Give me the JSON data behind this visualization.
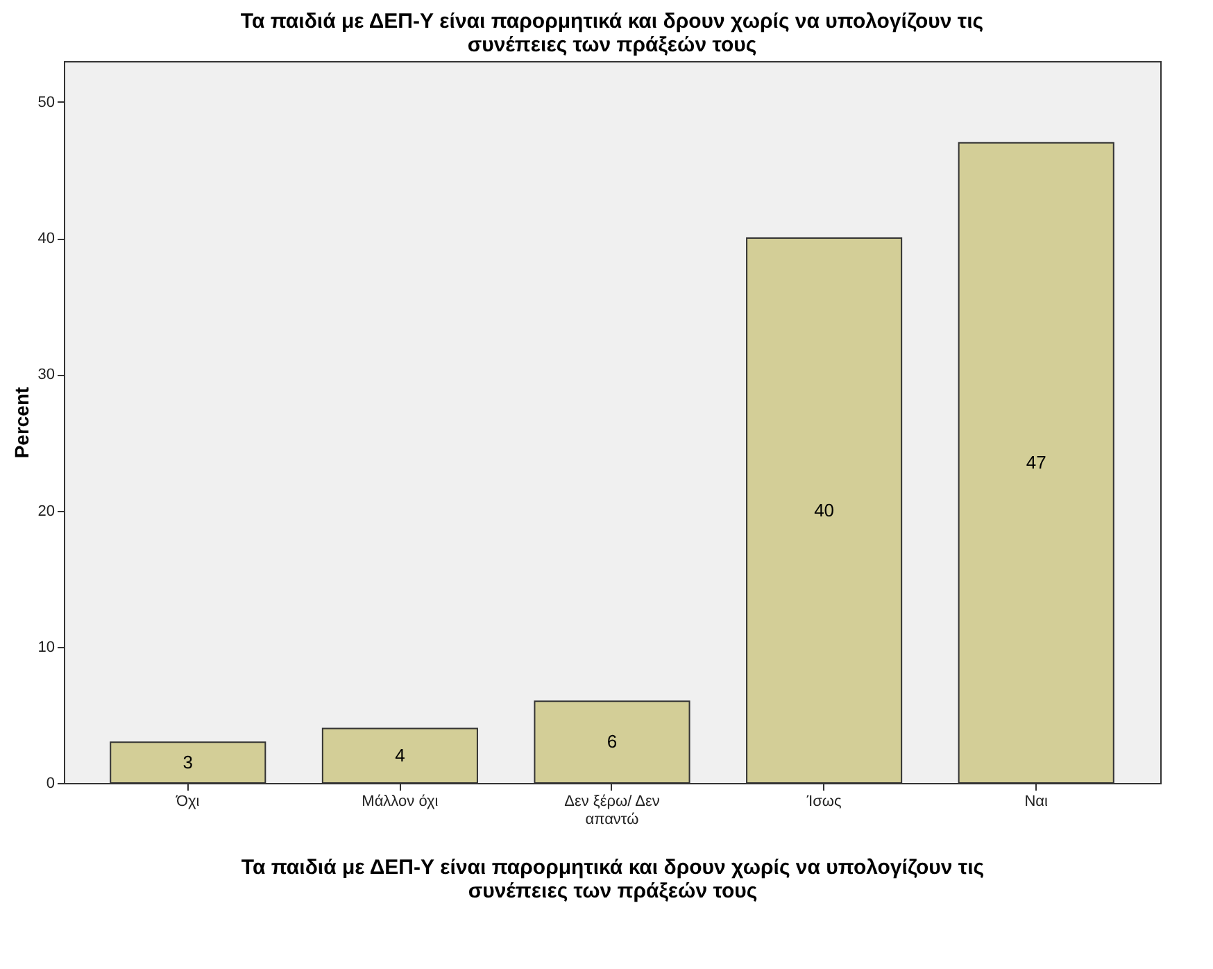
{
  "chart_data": {
    "type": "bar",
    "title": "Τα παιδιά με ΔΕΠ-Υ είναι παρορμητικά και δρουν χωρίς να υπολογίζουν τις συνέπειες των πράξεών τους",
    "xlabel": "Τα παιδιά με ΔΕΠ-Υ είναι παρορμητικά και δρουν χωρίς να υπολογίζουν τις συνέπειες των πράξεών τους",
    "ylabel": "Percent",
    "categories": [
      "Όχι",
      "Μάλλον όχι",
      "Δεν ξέρω/ Δεν απαντώ",
      "Ίσως",
      "Ναι"
    ],
    "values": [
      3,
      4,
      6,
      40,
      47
    ],
    "color": "#d3ce97",
    "ylim": [
      0,
      53
    ],
    "yticks": [
      0,
      10,
      20,
      30,
      40,
      50
    ],
    "grid": false,
    "data_labels": true
  }
}
